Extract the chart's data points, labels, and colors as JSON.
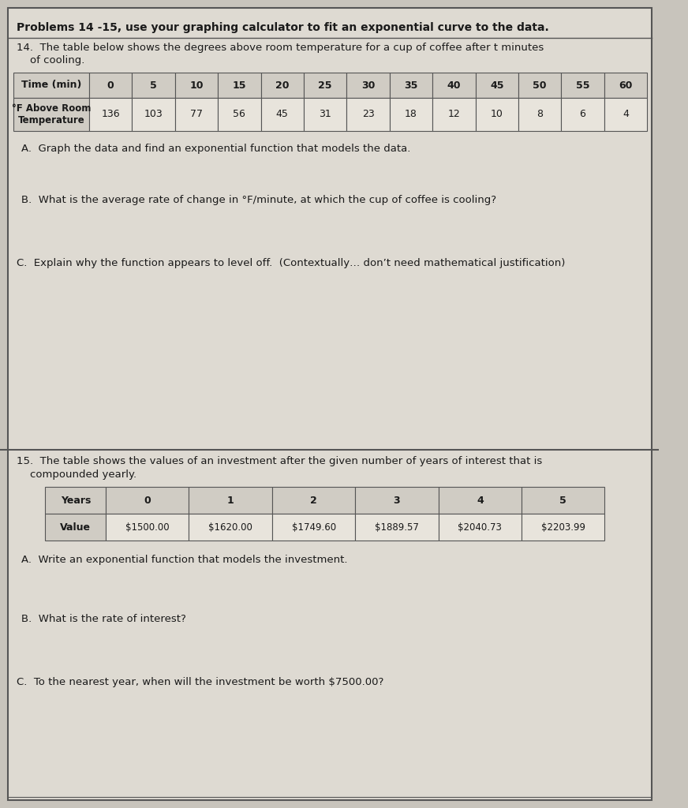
{
  "page_background": "#c8c4bc",
  "inner_background": "#dedad2",
  "header_text": "Problems 14 -15, use your graphing calculator to fit an exponential curve to the data.",
  "p14_intro_line1": "14.  The table below shows the degrees above room temperature for a cup of coffee after t minutes",
  "p14_intro_line2": "    of cooling.",
  "p14_table_headers": [
    "Time (min)",
    "0",
    "5",
    "10",
    "15",
    "20",
    "25",
    "30",
    "35",
    "40",
    "45",
    "50",
    "55",
    "60"
  ],
  "p14_row_label": "°F Above Room\nTemperature",
  "p14_values": [
    "136",
    "103",
    "77",
    "56",
    "45",
    "31",
    "23",
    "18",
    "12",
    "10",
    "8",
    "6",
    "4"
  ],
  "p14_A": "A.  Graph the data and find an exponential function that models the data.",
  "p14_B": "B.  What is the average rate of change in °F/minute, at which the cup of coffee is cooling?",
  "p14_C": "C.  Explain why the function appears to level off.  (Contextually… don’t need mathematical justification)",
  "p15_intro_line1": "15.  The table shows the values of an investment after the given number of years of interest that is",
  "p15_intro_line2": "    compounded yearly.",
  "p15_years": [
    "Years",
    "0",
    "1",
    "2",
    "3",
    "4",
    "5"
  ],
  "p15_values": [
    "$1500.00",
    "$1620.00",
    "$1749.60",
    "$1889.57",
    "$2040.73",
    "$2203.99"
  ],
  "p15_A": "A.  Write an exponential function that models the investment.",
  "p15_B": "B.  What is the rate of interest?",
  "p15_C": "C.  To the nearest year, when will the investment be worth $7500.00?",
  "text_color": "#1a1a1a",
  "table_header_bg": "#d0ccc4",
  "table_cell_bg": "#e8e4dc",
  "table_border": "#555555"
}
